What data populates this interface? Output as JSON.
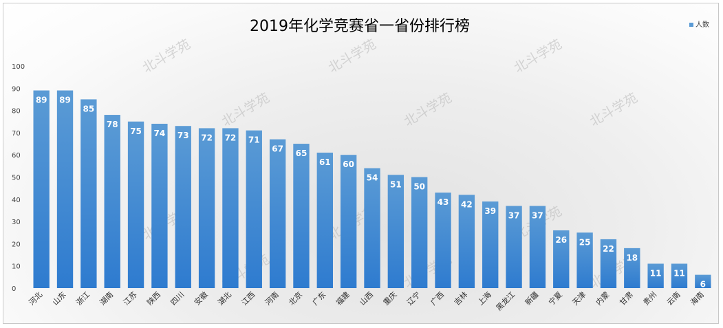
{
  "chart_data": {
    "type": "bar",
    "title": "2019年化学竞赛省一省份排行榜",
    "legend": [
      "人数"
    ],
    "legend_position": "top-right",
    "xlabel": "",
    "ylabel": "",
    "ylim": [
      0,
      100
    ],
    "yticks": [
      0,
      10,
      20,
      30,
      40,
      50,
      60,
      70,
      80,
      90,
      100
    ],
    "grid": false,
    "categories": [
      "河北",
      "山东",
      "浙江",
      "湖南",
      "江苏",
      "陕西",
      "四川",
      "安徽",
      "湖北",
      "江西",
      "河南",
      "北京",
      "广东",
      "福建",
      "山西",
      "重庆",
      "辽宁",
      "广西",
      "吉林",
      "上海",
      "黑龙江",
      "新疆",
      "宁夏",
      "天津",
      "内蒙",
      "甘肃",
      "贵州",
      "云南",
      "海南"
    ],
    "series": [
      {
        "name": "人数",
        "values": [
          89,
          89,
          85,
          78,
          75,
          74,
          73,
          72,
          72,
          71,
          67,
          65,
          61,
          60,
          54,
          51,
          50,
          43,
          42,
          39,
          37,
          37,
          26,
          25,
          22,
          18,
          11,
          11,
          6
        ]
      }
    ],
    "bar_color_top": "#5b9bd5",
    "bar_color_bottom": "#2e7bcf",
    "watermark": "北斗学苑"
  }
}
